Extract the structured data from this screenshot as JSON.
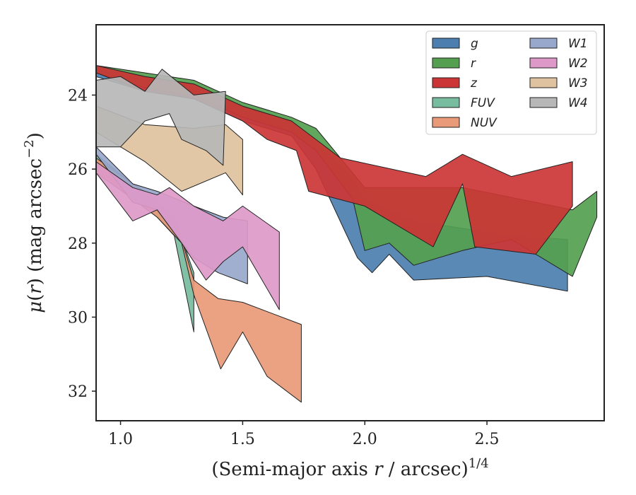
{
  "chart_data": {
    "type": "area",
    "xlabel": "(Semi-major axis r / arcsec)^1/4",
    "ylabel": "μ(r) (mag arcsec^−2)",
    "xlim": [
      0.9,
      2.98
    ],
    "ylim": [
      32.8,
      22.1
    ],
    "xticks": [
      "1.0",
      "1.5",
      "2.0",
      "2.5"
    ],
    "yticks": [
      "24",
      "26",
      "28",
      "30",
      "32"
    ],
    "grid": false,
    "legend_position": "top-right",
    "legend_columns": 2,
    "series": [
      {
        "name": "g",
        "color": "#4c7fb0",
        "upper": [
          [
            0.9,
            23.3
          ],
          [
            1.1,
            23.5
          ],
          [
            1.3,
            23.7
          ],
          [
            1.5,
            24.3
          ],
          [
            1.7,
            24.7
          ],
          [
            1.8,
            25.3
          ],
          [
            1.92,
            26.0
          ],
          [
            2.0,
            26.8
          ],
          [
            2.2,
            27.4
          ],
          [
            2.4,
            27.6
          ],
          [
            2.6,
            27.8
          ],
          [
            2.83,
            27.9
          ]
        ],
        "lower": [
          [
            0.9,
            23.5
          ],
          [
            1.1,
            23.9
          ],
          [
            1.3,
            24.1
          ],
          [
            1.5,
            24.7
          ],
          [
            1.7,
            25.1
          ],
          [
            1.8,
            26.0
          ],
          [
            1.92,
            27.7
          ],
          [
            1.97,
            28.4
          ],
          [
            2.03,
            28.8
          ],
          [
            2.1,
            28.3
          ],
          [
            2.2,
            29.0
          ],
          [
            2.5,
            28.9
          ],
          [
            2.83,
            29.3
          ]
        ]
      },
      {
        "name": "r",
        "color": "#55a050",
        "upper": [
          [
            0.9,
            23.2
          ],
          [
            1.1,
            23.4
          ],
          [
            1.3,
            23.6
          ],
          [
            1.5,
            24.2
          ],
          [
            1.7,
            24.6
          ],
          [
            1.8,
            24.9
          ],
          [
            1.9,
            25.7
          ],
          [
            2.0,
            26.5
          ],
          [
            2.4,
            26.5
          ],
          [
            2.85,
            27.1
          ],
          [
            2.95,
            26.6
          ]
        ],
        "lower": [
          [
            0.9,
            23.4
          ],
          [
            1.1,
            23.8
          ],
          [
            1.3,
            24.0
          ],
          [
            1.5,
            24.6
          ],
          [
            1.7,
            25.0
          ],
          [
            1.8,
            25.5
          ],
          [
            1.95,
            26.8
          ],
          [
            2.0,
            28.2
          ],
          [
            2.1,
            28.0
          ],
          [
            2.2,
            28.6
          ],
          [
            2.4,
            28.2
          ],
          [
            2.6,
            27.9
          ],
          [
            2.85,
            28.9
          ],
          [
            2.95,
            27.3
          ]
        ]
      },
      {
        "name": "z",
        "color": "#cc3535",
        "upper": [
          [
            0.9,
            23.2
          ],
          [
            1.1,
            23.5
          ],
          [
            1.3,
            23.7
          ],
          [
            1.5,
            24.3
          ],
          [
            1.6,
            24.5
          ],
          [
            1.7,
            24.7
          ],
          [
            1.9,
            25.7
          ],
          [
            2.25,
            26.2
          ],
          [
            2.4,
            25.6
          ],
          [
            2.6,
            26.2
          ],
          [
            2.85,
            25.8
          ]
        ],
        "lower": [
          [
            0.9,
            23.4
          ],
          [
            1.1,
            23.9
          ],
          [
            1.3,
            24.1
          ],
          [
            1.5,
            24.7
          ],
          [
            1.6,
            25.2
          ],
          [
            1.72,
            25.5
          ],
          [
            1.77,
            26.6
          ],
          [
            2.0,
            27.0
          ],
          [
            2.28,
            28.1
          ],
          [
            2.4,
            26.4
          ],
          [
            2.45,
            28.1
          ],
          [
            2.7,
            28.3
          ],
          [
            2.85,
            27.0
          ]
        ]
      },
      {
        "name": "FUV",
        "color": "#78bca0",
        "upper": [
          [
            0.9,
            25.6
          ],
          [
            1.05,
            26.4
          ],
          [
            1.15,
            26.9
          ],
          [
            1.22,
            27.3
          ],
          [
            1.3,
            28.8
          ]
        ],
        "lower": [
          [
            0.9,
            26.0
          ],
          [
            1.05,
            26.8
          ],
          [
            1.15,
            27.3
          ],
          [
            1.22,
            27.8
          ],
          [
            1.3,
            30.4
          ]
        ]
      },
      {
        "name": "NUV",
        "color": "#e99a78",
        "upper": [
          [
            0.9,
            25.7
          ],
          [
            1.05,
            26.4
          ],
          [
            1.15,
            26.8
          ],
          [
            1.25,
            27.9
          ],
          [
            1.3,
            29.0
          ],
          [
            1.4,
            29.5
          ],
          [
            1.5,
            29.6
          ],
          [
            1.74,
            30.2
          ]
        ],
        "lower": [
          [
            0.9,
            26.1
          ],
          [
            1.05,
            26.8
          ],
          [
            1.15,
            27.3
          ],
          [
            1.25,
            28.0
          ],
          [
            1.3,
            29.4
          ],
          [
            1.41,
            31.4
          ],
          [
            1.5,
            30.4
          ],
          [
            1.6,
            31.6
          ],
          [
            1.74,
            32.3
          ]
        ]
      },
      {
        "name": "W1",
        "color": "#98a8cc",
        "upper": [
          [
            0.9,
            25.4
          ],
          [
            1.05,
            26.4
          ],
          [
            1.15,
            26.6
          ],
          [
            1.3,
            27.0
          ],
          [
            1.42,
            27.3
          ],
          [
            1.52,
            27.4
          ]
        ],
        "lower": [
          [
            0.9,
            25.6
          ],
          [
            1.05,
            26.9
          ],
          [
            1.15,
            27.1
          ],
          [
            1.3,
            28.4
          ],
          [
            1.4,
            28.8
          ],
          [
            1.52,
            29.1
          ]
        ]
      },
      {
        "name": "W2",
        "color": "#dd99c8",
        "upper": [
          [
            0.9,
            25.8
          ],
          [
            1.05,
            26.5
          ],
          [
            1.15,
            26.7
          ],
          [
            1.2,
            26.5
          ],
          [
            1.3,
            27.0
          ],
          [
            1.42,
            27.4
          ],
          [
            1.5,
            27.0
          ],
          [
            1.65,
            27.7
          ]
        ],
        "lower": [
          [
            0.9,
            26.1
          ],
          [
            1.05,
            27.4
          ],
          [
            1.15,
            27.1
          ],
          [
            1.25,
            28.0
          ],
          [
            1.35,
            29.0
          ],
          [
            1.42,
            28.5
          ],
          [
            1.5,
            28.1
          ],
          [
            1.65,
            29.8
          ]
        ]
      },
      {
        "name": "W3",
        "color": "#dfc2a0",
        "upper": [
          [
            0.9,
            24.3
          ],
          [
            1.1,
            24.8
          ],
          [
            1.3,
            24.9
          ],
          [
            1.43,
            24.8
          ],
          [
            1.5,
            25.2
          ]
        ],
        "lower": [
          [
            0.9,
            25.0
          ],
          [
            1.1,
            25.8
          ],
          [
            1.25,
            26.6
          ],
          [
            1.43,
            26.1
          ],
          [
            1.5,
            26.7
          ]
        ]
      },
      {
        "name": "W4",
        "color": "#b7b7b7",
        "upper": [
          [
            0.9,
            23.6
          ],
          [
            1.0,
            23.5
          ],
          [
            1.1,
            23.9
          ],
          [
            1.17,
            23.3
          ],
          [
            1.3,
            24.0
          ],
          [
            1.43,
            23.9
          ]
        ],
        "lower": [
          [
            0.9,
            25.4
          ],
          [
            1.0,
            25.4
          ],
          [
            1.1,
            24.7
          ],
          [
            1.2,
            24.5
          ],
          [
            1.25,
            25.2
          ],
          [
            1.35,
            25.5
          ],
          [
            1.42,
            25.9
          ]
        ]
      }
    ]
  }
}
